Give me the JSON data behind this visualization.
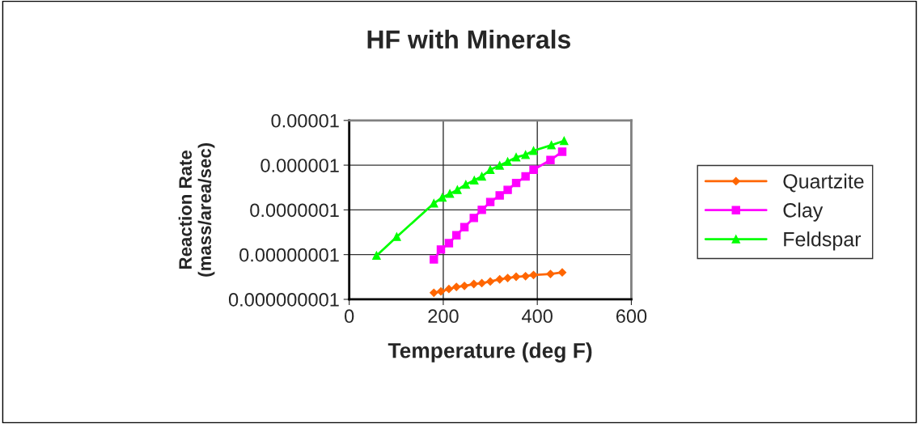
{
  "chart_data": {
    "type": "line",
    "title": "HF with Minerals",
    "xlabel": "Temperature (deg F)",
    "ylabel": "Reaction Rate\n(mass/area/sec)",
    "log": "y",
    "grid": true,
    "legend": "right",
    "xlim": [
      0,
      600
    ],
    "xticks": [
      0,
      200,
      400,
      600
    ],
    "ylim": [
      1e-09,
      1e-05
    ],
    "yticks": [
      {
        "value": 1e-09,
        "label": "0.000000001"
      },
      {
        "value": 1e-08,
        "label": "0.00000001"
      },
      {
        "value": 1e-07,
        "label": "0.0000001"
      },
      {
        "value": 1e-06,
        "label": "0.000001"
      },
      {
        "value": 1e-05,
        "label": "0.00001"
      }
    ],
    "series": [
      {
        "name": "Quartzite",
        "color": "#ff6600",
        "marker": "diamond",
        "x": [
          180,
          195,
          212,
          228,
          245,
          265,
          282,
          300,
          320,
          337,
          355,
          375,
          392,
          428,
          453
        ],
        "values": [
          1.4e-09,
          1.5e-09,
          1.7e-09,
          1.9e-09,
          2e-09,
          2.2e-09,
          2.3e-09,
          2.5e-09,
          2.8e-09,
          3e-09,
          3.2e-09,
          3.3e-09,
          3.5e-09,
          3.7e-09,
          4e-09
        ]
      },
      {
        "name": "Clay",
        "color": "#ff00ff",
        "marker": "square",
        "x": [
          180,
          195,
          212,
          228,
          245,
          265,
          282,
          300,
          320,
          337,
          355,
          375,
          392,
          428,
          453
        ],
        "values": [
          7.8e-09,
          1.3e-08,
          1.8e-08,
          2.7e-08,
          4.1e-08,
          6.6e-08,
          1e-07,
          1.5e-07,
          2.1e-07,
          2.8e-07,
          4e-07,
          5.6e-07,
          7.9e-07,
          1.3e-06,
          2e-06
        ]
      },
      {
        "name": "Feldspar",
        "color": "#00ff00",
        "marker": "triangle",
        "x": [
          58,
          101,
          180,
          198,
          214,
          230,
          248,
          266,
          282,
          300,
          320,
          337,
          355,
          375,
          392,
          430,
          457
        ],
        "values": [
          9.5e-09,
          2.5e-08,
          1.4e-07,
          1.9e-07,
          2.3e-07,
          2.8e-07,
          3.7e-07,
          4.6e-07,
          5.6e-07,
          7.9e-07,
          9.8e-07,
          1.2e-06,
          1.5e-06,
          1.7e-06,
          2.1e-06,
          2.8e-06,
          3.5e-06
        ]
      }
    ]
  }
}
